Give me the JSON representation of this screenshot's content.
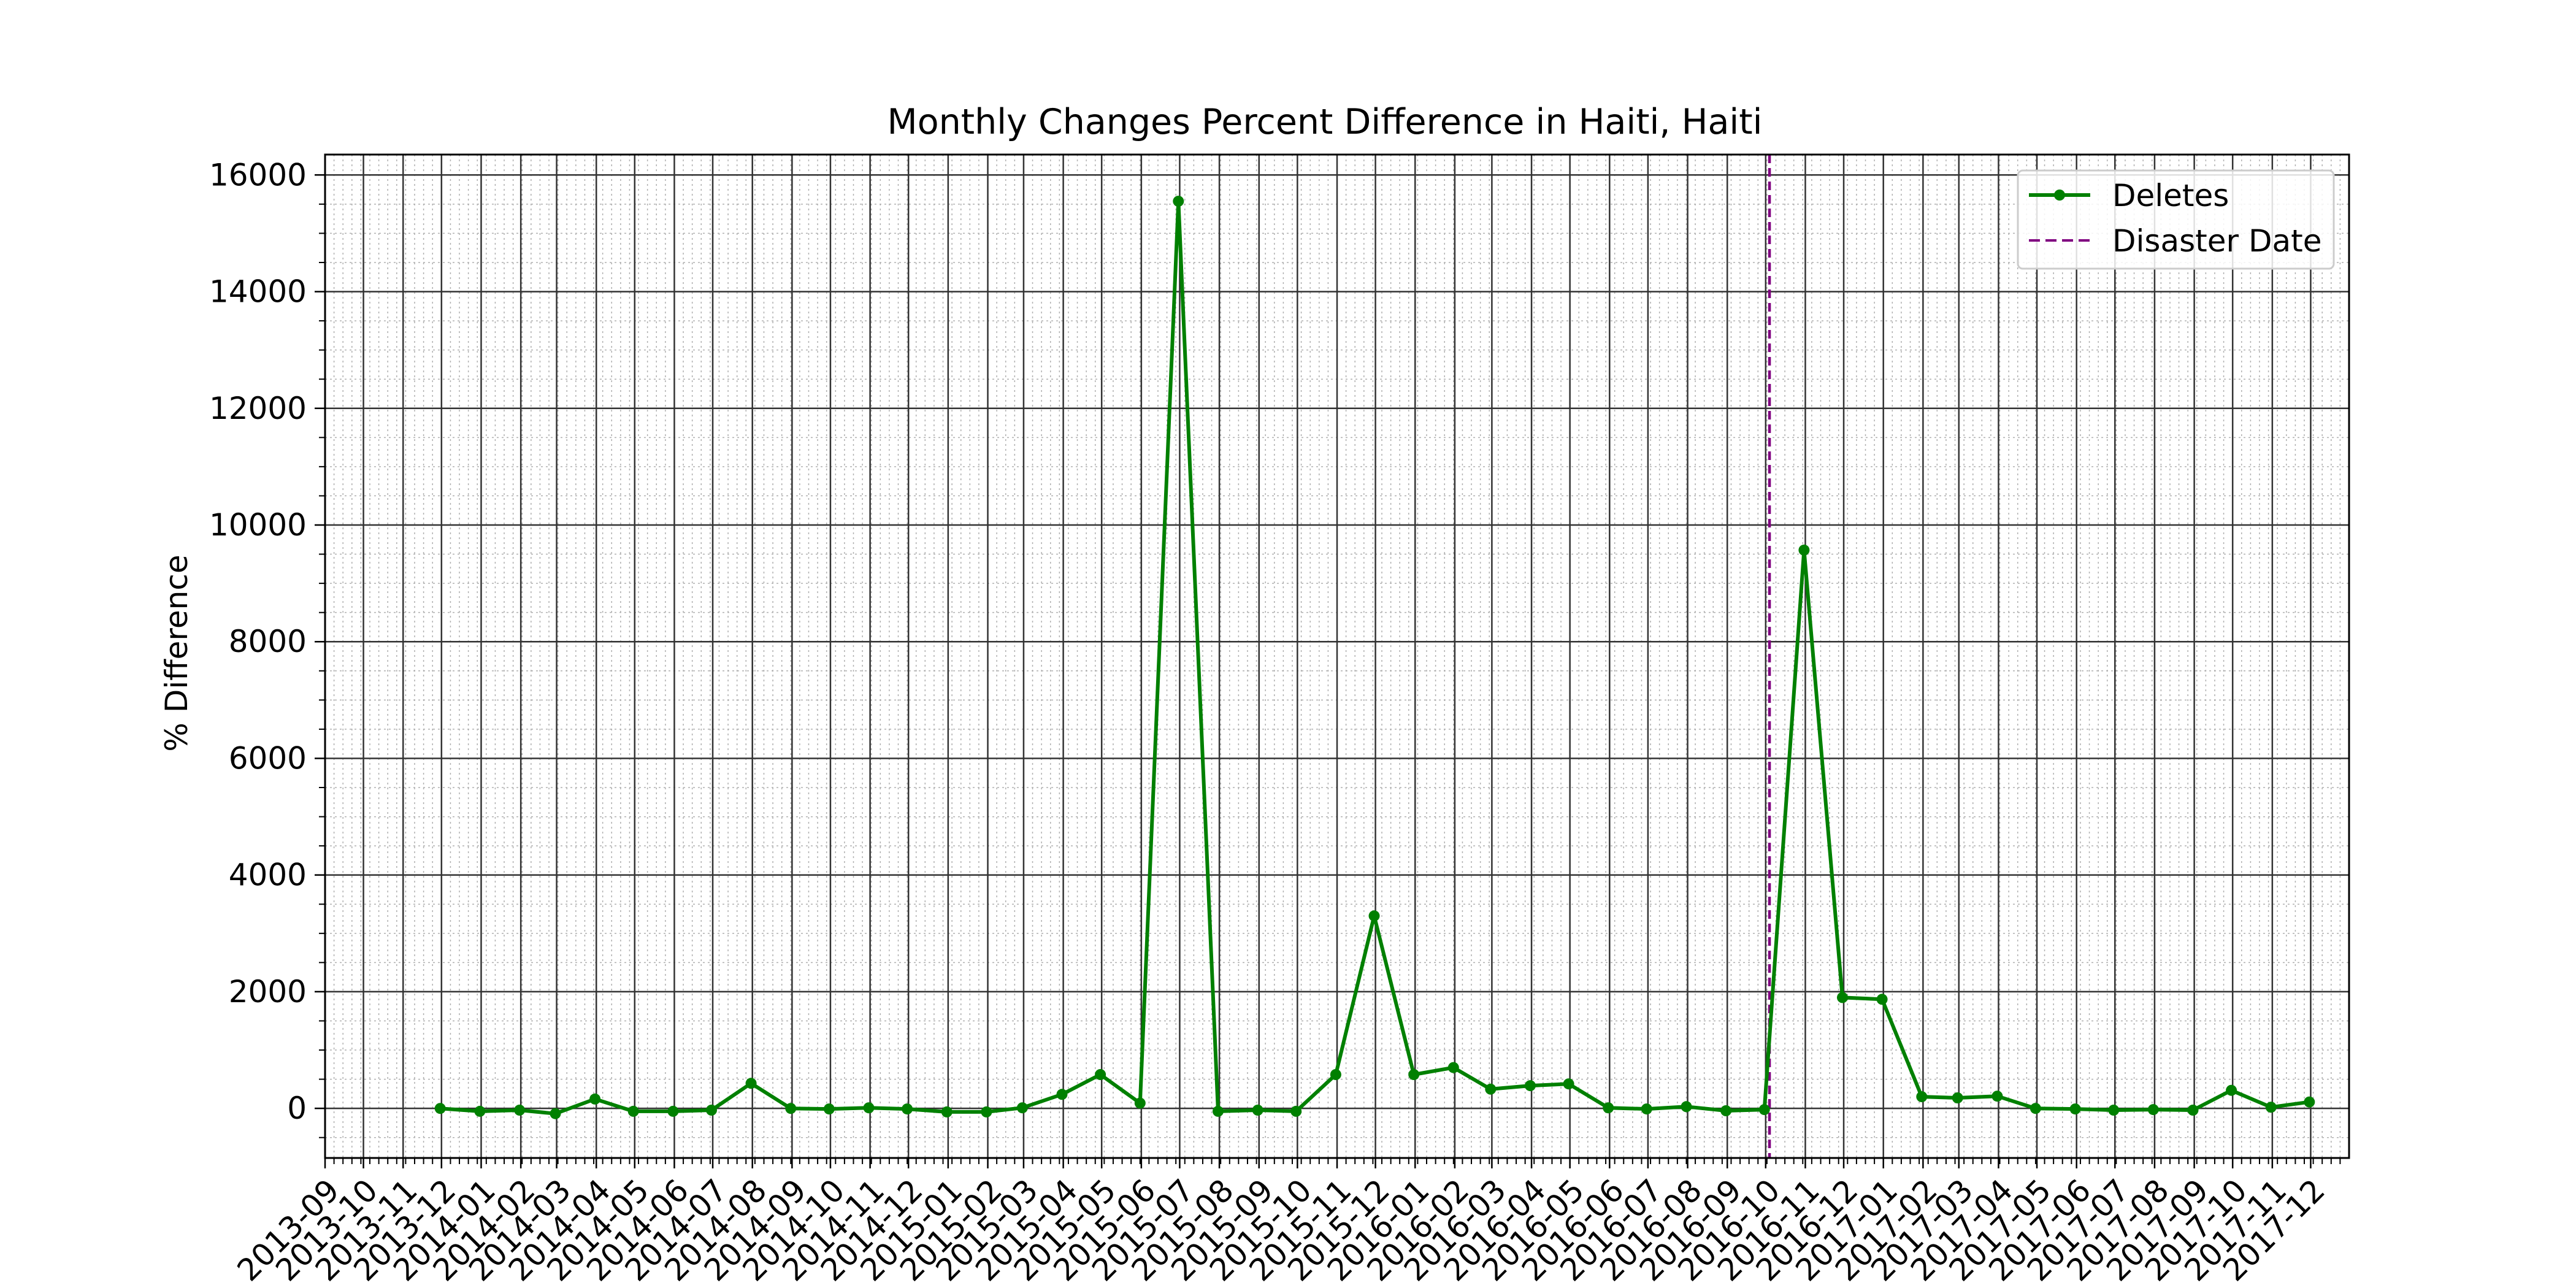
{
  "chart_data": {
    "type": "line",
    "title": "Monthly Changes Percent Difference in Haiti, Haiti",
    "xlabel": "",
    "ylabel": "% Difference",
    "x_tick_labels": [
      "2013-09",
      "2013-10",
      "2013-11",
      "2013-12",
      "2014-01",
      "2014-02",
      "2014-03",
      "2014-04",
      "2014-05",
      "2014-06",
      "2014-07",
      "2014-08",
      "2014-09",
      "2014-10",
      "2014-11",
      "2014-12",
      "2015-01",
      "2015-02",
      "2015-03",
      "2015-04",
      "2015-05",
      "2015-06",
      "2015-07",
      "2015-08",
      "2015-09",
      "2015-10",
      "2015-11",
      "2015-12",
      "2016-01",
      "2016-02",
      "2016-03",
      "2016-04",
      "2016-05",
      "2016-06",
      "2016-07",
      "2016-08",
      "2016-09",
      "2016-10",
      "2016-11",
      "2016-12",
      "2017-01",
      "2017-02",
      "2017-03",
      "2017-04",
      "2017-05",
      "2017-06",
      "2017-07",
      "2017-08",
      "2017-09",
      "2017-10",
      "2017-11",
      "2017-12"
    ],
    "y_ticks": [
      0,
      2000,
      4000,
      6000,
      8000,
      10000,
      12000,
      14000,
      16000
    ],
    "xlim": [
      "2013-09-01",
      "2017-12-31"
    ],
    "ylim": [
      -850,
      16350
    ],
    "grid": true,
    "legend_position": "top-right",
    "series": [
      {
        "name": "Deletes",
        "color": "#008000",
        "marker": "circle",
        "points": [
          {
            "x": "2013-11-30",
            "y": 0
          },
          {
            "x": "2013-12-31",
            "y": -50
          },
          {
            "x": "2014-01-31",
            "y": -30
          },
          {
            "x": "2014-02-28",
            "y": -90
          },
          {
            "x": "2014-03-31",
            "y": 160
          },
          {
            "x": "2014-04-30",
            "y": -50
          },
          {
            "x": "2014-05-31",
            "y": -50
          },
          {
            "x": "2014-06-30",
            "y": -30
          },
          {
            "x": "2014-07-31",
            "y": 430
          },
          {
            "x": "2014-08-31",
            "y": 0
          },
          {
            "x": "2014-09-30",
            "y": -10
          },
          {
            "x": "2014-10-31",
            "y": 10
          },
          {
            "x": "2014-11-30",
            "y": -10
          },
          {
            "x": "2014-12-31",
            "y": -60
          },
          {
            "x": "2015-01-31",
            "y": -60
          },
          {
            "x": "2015-02-28",
            "y": 10
          },
          {
            "x": "2015-03-31",
            "y": 240
          },
          {
            "x": "2015-04-30",
            "y": 580
          },
          {
            "x": "2015-05-31",
            "y": 90
          },
          {
            "x": "2015-06-30",
            "y": 15550
          },
          {
            "x": "2015-07-31",
            "y": -50
          },
          {
            "x": "2015-08-31",
            "y": -30
          },
          {
            "x": "2015-09-30",
            "y": -50
          },
          {
            "x": "2015-10-31",
            "y": 580
          },
          {
            "x": "2015-11-30",
            "y": 3300
          },
          {
            "x": "2015-12-31",
            "y": 580
          },
          {
            "x": "2016-01-31",
            "y": 700
          },
          {
            "x": "2016-02-29",
            "y": 330
          },
          {
            "x": "2016-03-31",
            "y": 390
          },
          {
            "x": "2016-04-30",
            "y": 420
          },
          {
            "x": "2016-05-31",
            "y": 10
          },
          {
            "x": "2016-06-30",
            "y": -10
          },
          {
            "x": "2016-07-31",
            "y": 30
          },
          {
            "x": "2016-08-31",
            "y": -40
          },
          {
            "x": "2016-09-30",
            "y": -20
          },
          {
            "x": "2016-10-31",
            "y": 9570
          },
          {
            "x": "2016-11-30",
            "y": 1900
          },
          {
            "x": "2016-12-31",
            "y": 1870
          },
          {
            "x": "2017-01-31",
            "y": 200
          },
          {
            "x": "2017-02-28",
            "y": 180
          },
          {
            "x": "2017-03-31",
            "y": 210
          },
          {
            "x": "2017-04-30",
            "y": 0
          },
          {
            "x": "2017-05-31",
            "y": -10
          },
          {
            "x": "2017-06-30",
            "y": -30
          },
          {
            "x": "2017-07-31",
            "y": -20
          },
          {
            "x": "2017-08-31",
            "y": -30
          },
          {
            "x": "2017-09-30",
            "y": 310
          },
          {
            "x": "2017-10-31",
            "y": 20
          },
          {
            "x": "2017-11-30",
            "y": 110
          }
        ]
      }
    ],
    "vertical_line": {
      "name": "Disaster Date",
      "x": "2016-10-04",
      "color": "#800080",
      "style": "dashed"
    }
  }
}
